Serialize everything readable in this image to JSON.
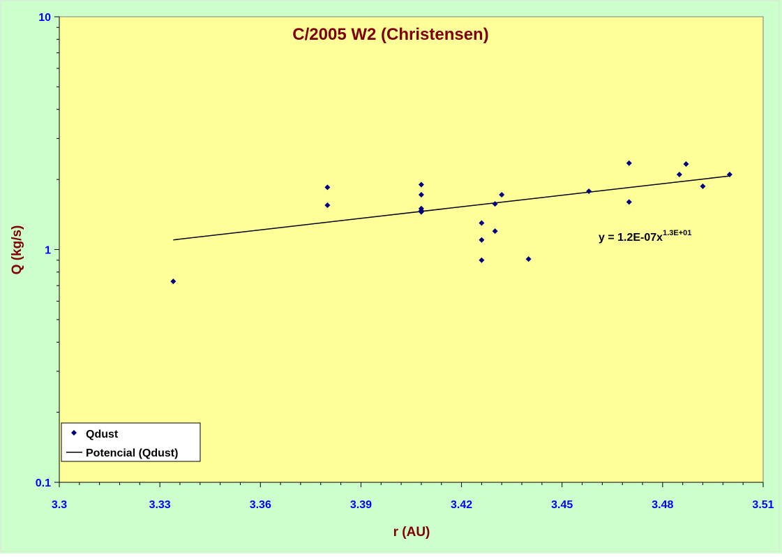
{
  "chart_data": {
    "type": "scatter",
    "title": "C/2005 W2 (Christensen)",
    "xlabel": "r (AU)",
    "ylabel": "Q (kg/s)",
    "xlim": [
      3.3,
      3.51
    ],
    "ylim": [
      0.1,
      10
    ],
    "yscale": "log",
    "x_ticks": [
      "3.3",
      "3.33",
      "3.36",
      "3.39",
      "3.42",
      "3.45",
      "3.48",
      "3.51"
    ],
    "y_ticks": [
      "0.1",
      "1",
      "10"
    ],
    "grid": false,
    "legend_position": "bottom-left",
    "series": [
      {
        "name": "Qdust",
        "kind": "points",
        "color": "#000080",
        "x": [
          3.334,
          3.38,
          3.38,
          3.408,
          3.408,
          3.408,
          3.408,
          3.408,
          3.426,
          3.426,
          3.426,
          3.43,
          3.43,
          3.432,
          3.44,
          3.458,
          3.47,
          3.47,
          3.485,
          3.487,
          3.492,
          3.5
        ],
        "y": [
          0.73,
          1.85,
          1.55,
          1.9,
          1.72,
          1.5,
          1.47,
          1.45,
          1.3,
          1.1,
          0.9,
          1.2,
          1.57,
          1.72,
          0.91,
          1.78,
          2.35,
          1.6,
          2.1,
          2.33,
          1.87,
          2.1
        ]
      },
      {
        "name": "Potencial (Qdust)",
        "kind": "trendline",
        "color": "#000000",
        "x": [
          3.334,
          3.5
        ],
        "y": [
          1.1,
          2.07
        ]
      }
    ],
    "annotations": [
      {
        "base": "y = 1.2E-07x",
        "superscript": "1.3E+01"
      }
    ]
  }
}
